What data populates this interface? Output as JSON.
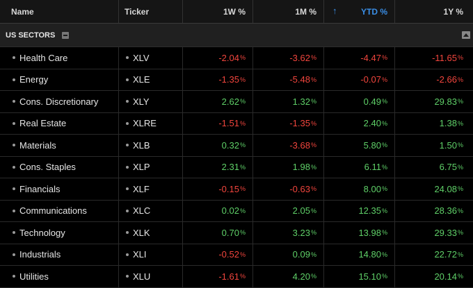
{
  "header": {
    "name": "Name",
    "ticker": "Ticker",
    "w1": "1W %",
    "m1": "1M %",
    "ytd": "YTD %",
    "y1": "1Y %"
  },
  "section": {
    "title": "US SECTORS"
  },
  "rows": [
    {
      "name": "Health Care",
      "ticker": "XLV",
      "w1": "-2.04",
      "m1": "-3.62",
      "ytd": "-4.47",
      "y1": "-11.65"
    },
    {
      "name": "Energy",
      "ticker": "XLE",
      "w1": "-1.35",
      "m1": "-5.48",
      "ytd": "-0.07",
      "y1": "-2.66"
    },
    {
      "name": "Cons. Discretionary",
      "ticker": "XLY",
      "w1": "2.62",
      "m1": "1.32",
      "ytd": "0.49",
      "y1": "29.83"
    },
    {
      "name": "Real Estate",
      "ticker": "XLRE",
      "w1": "-1.51",
      "m1": "-1.35",
      "ytd": "2.40",
      "y1": "1.38"
    },
    {
      "name": "Materials",
      "ticker": "XLB",
      "w1": "0.32",
      "m1": "-3.68",
      "ytd": "5.80",
      "y1": "1.50"
    },
    {
      "name": "Cons. Staples",
      "ticker": "XLP",
      "w1": "2.31",
      "m1": "1.98",
      "ytd": "6.11",
      "y1": "6.75"
    },
    {
      "name": "Financials",
      "ticker": "XLF",
      "w1": "-0.15",
      "m1": "-0.63",
      "ytd": "8.00",
      "y1": "24.08"
    },
    {
      "name": "Communications",
      "ticker": "XLC",
      "w1": "0.02",
      "m1": "2.05",
      "ytd": "12.35",
      "y1": "28.36"
    },
    {
      "name": "Technology",
      "ticker": "XLK",
      "w1": "0.70",
      "m1": "3.23",
      "ytd": "13.98",
      "y1": "29.33"
    },
    {
      "name": "Industrials",
      "ticker": "XLI",
      "w1": "-0.52",
      "m1": "0.09",
      "ytd": "14.80",
      "y1": "22.72"
    },
    {
      "name": "Utilities",
      "ticker": "XLU",
      "w1": "-1.61",
      "m1": "4.20",
      "ytd": "15.10",
      "y1": "20.14"
    }
  ],
  "colors": {
    "negative": "#f2453d",
    "positive": "#5fd068",
    "accent": "#3a8ee6"
  }
}
